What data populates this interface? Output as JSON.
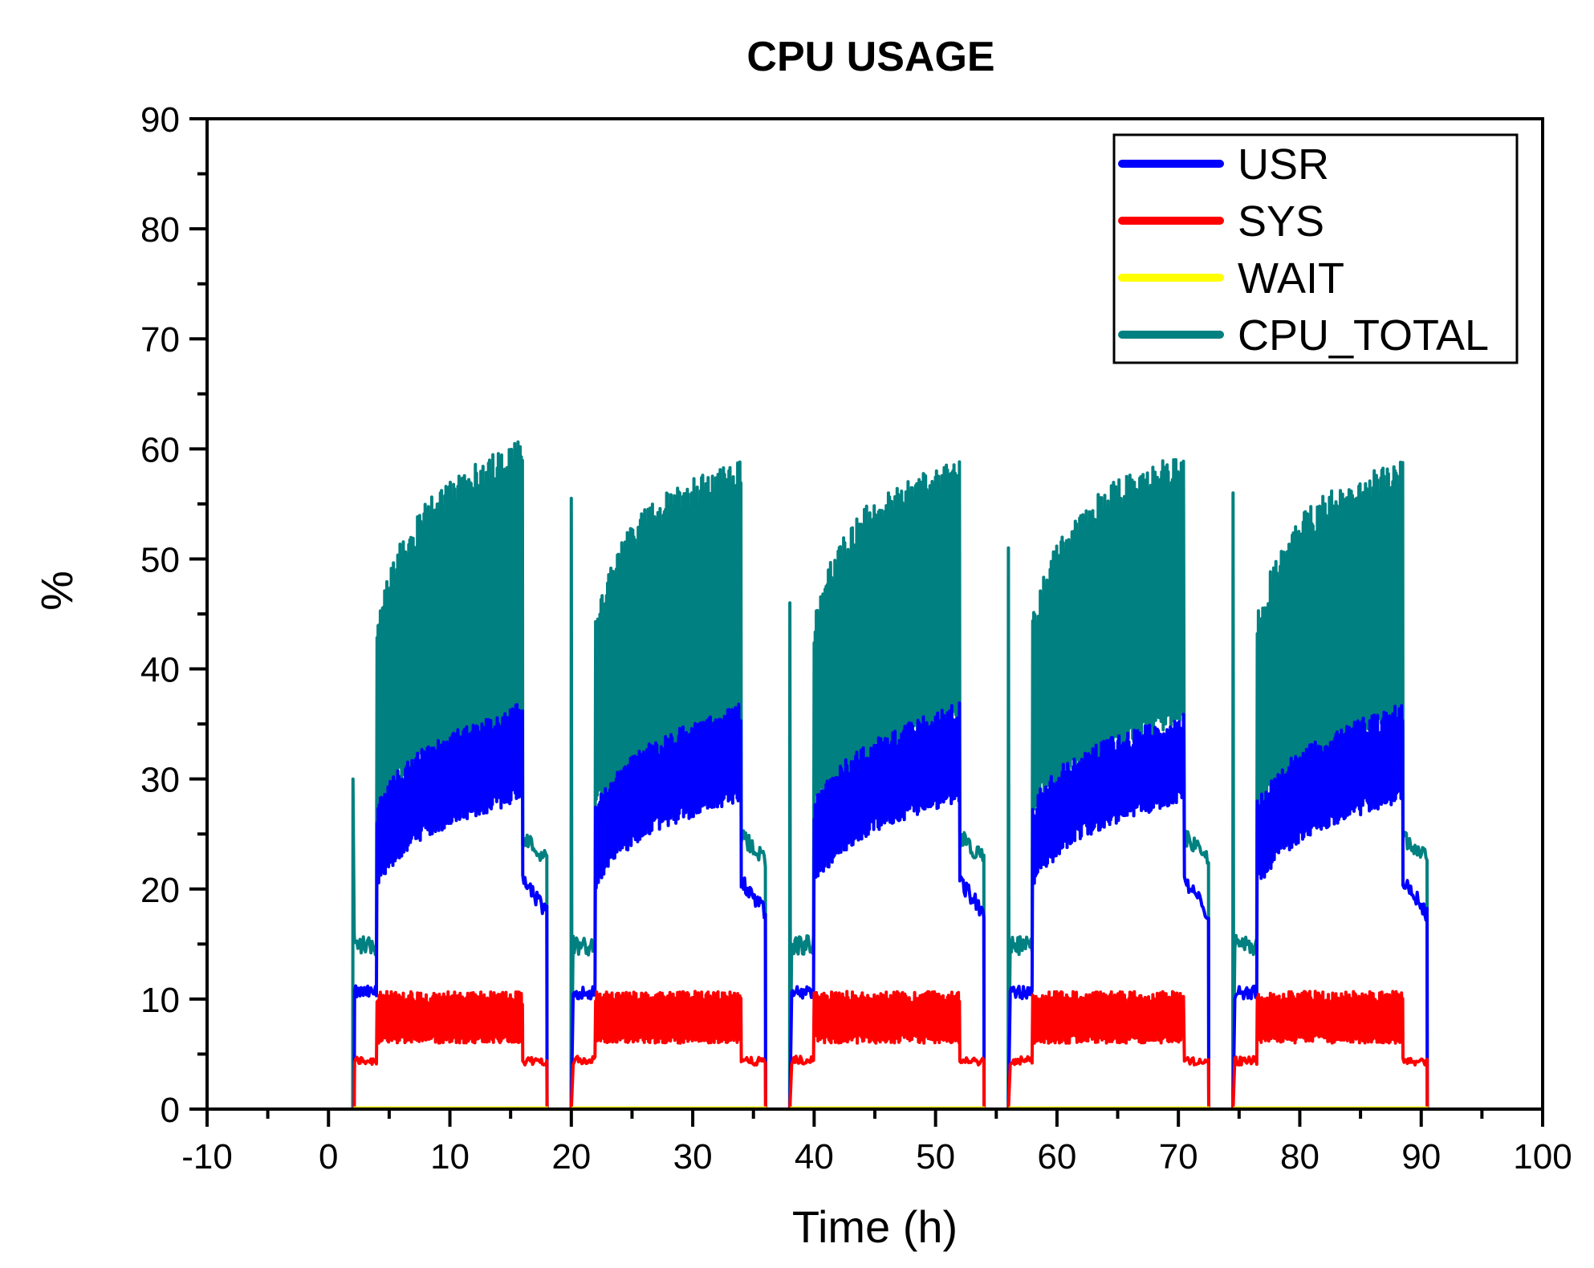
{
  "chart_data": {
    "type": "line",
    "title": "CPU USAGE",
    "xlabel": "Time (h)",
    "ylabel": "%",
    "xlim": [
      -10,
      100
    ],
    "ylim": [
      0,
      90
    ],
    "xticks": [
      -10,
      0,
      10,
      20,
      30,
      40,
      50,
      60,
      70,
      80,
      90,
      100
    ],
    "yticks": [
      0,
      10,
      20,
      30,
      40,
      50,
      60,
      70,
      80,
      90
    ],
    "xtick_labels": [
      "-10",
      "0",
      "10",
      "20",
      "30",
      "40",
      "50",
      "60",
      "70",
      "80",
      "90",
      "100"
    ],
    "ytick_labels": [
      "0",
      "10",
      "20",
      "30",
      "40",
      "50",
      "60",
      "70",
      "80",
      "90"
    ],
    "legend_position": "top-right",
    "series": [
      {
        "name": "USR",
        "color": "#0000ff"
      },
      {
        "name": "SYS",
        "color": "#ff0000"
      },
      {
        "name": "WAIT",
        "color": "#ffff00"
      },
      {
        "name": "CPU_TOTAL",
        "color": "#008080"
      }
    ],
    "cycles": [
      {
        "ramp_start": 2.0,
        "run_start": 4.0,
        "run_end": 16.0,
        "idle_end": 18.0,
        "spike_peak": 30,
        "usr_hi_end": 35,
        "total_peak": 60,
        "next_spike": 20.0,
        "next_spike_peak": 55.5
      },
      {
        "ramp_start": 20.0,
        "run_start": 22.0,
        "run_end": 34.0,
        "idle_end": 36.0,
        "usr_hi_end": 35,
        "total_peak": 58,
        "next_spike": 38.0,
        "next_spike_peak": 46
      },
      {
        "ramp_start": 38.0,
        "run_start": 40.0,
        "run_end": 52.0,
        "idle_end": 54.0,
        "usr_hi_end": 35,
        "total_peak": 58,
        "next_spike": 56.0,
        "next_spike_peak": 51
      },
      {
        "ramp_start": 56.0,
        "run_start": 58.0,
        "run_end": 70.5,
        "idle_end": 72.5,
        "usr_hi_end": 34,
        "total_peak": 59,
        "next_spike": 74.5,
        "next_spike_peak": 56
      },
      {
        "ramp_start": 74.5,
        "run_start": 76.5,
        "run_end": 88.5,
        "idle_end": 90.5,
        "usr_hi_end": 35,
        "total_peak": 58
      }
    ],
    "end_time": 92.5,
    "levels": {
      "idle_total": 14,
      "idle_usr": 10,
      "idle_sys": 4,
      "run_usr_band": [
        25,
        35
      ],
      "run_sys_band": [
        6,
        10.5
      ],
      "run_total_band": [
        29,
        60
      ],
      "post_usr": 17,
      "post_total": 22,
      "post_sys": 4
    }
  }
}
